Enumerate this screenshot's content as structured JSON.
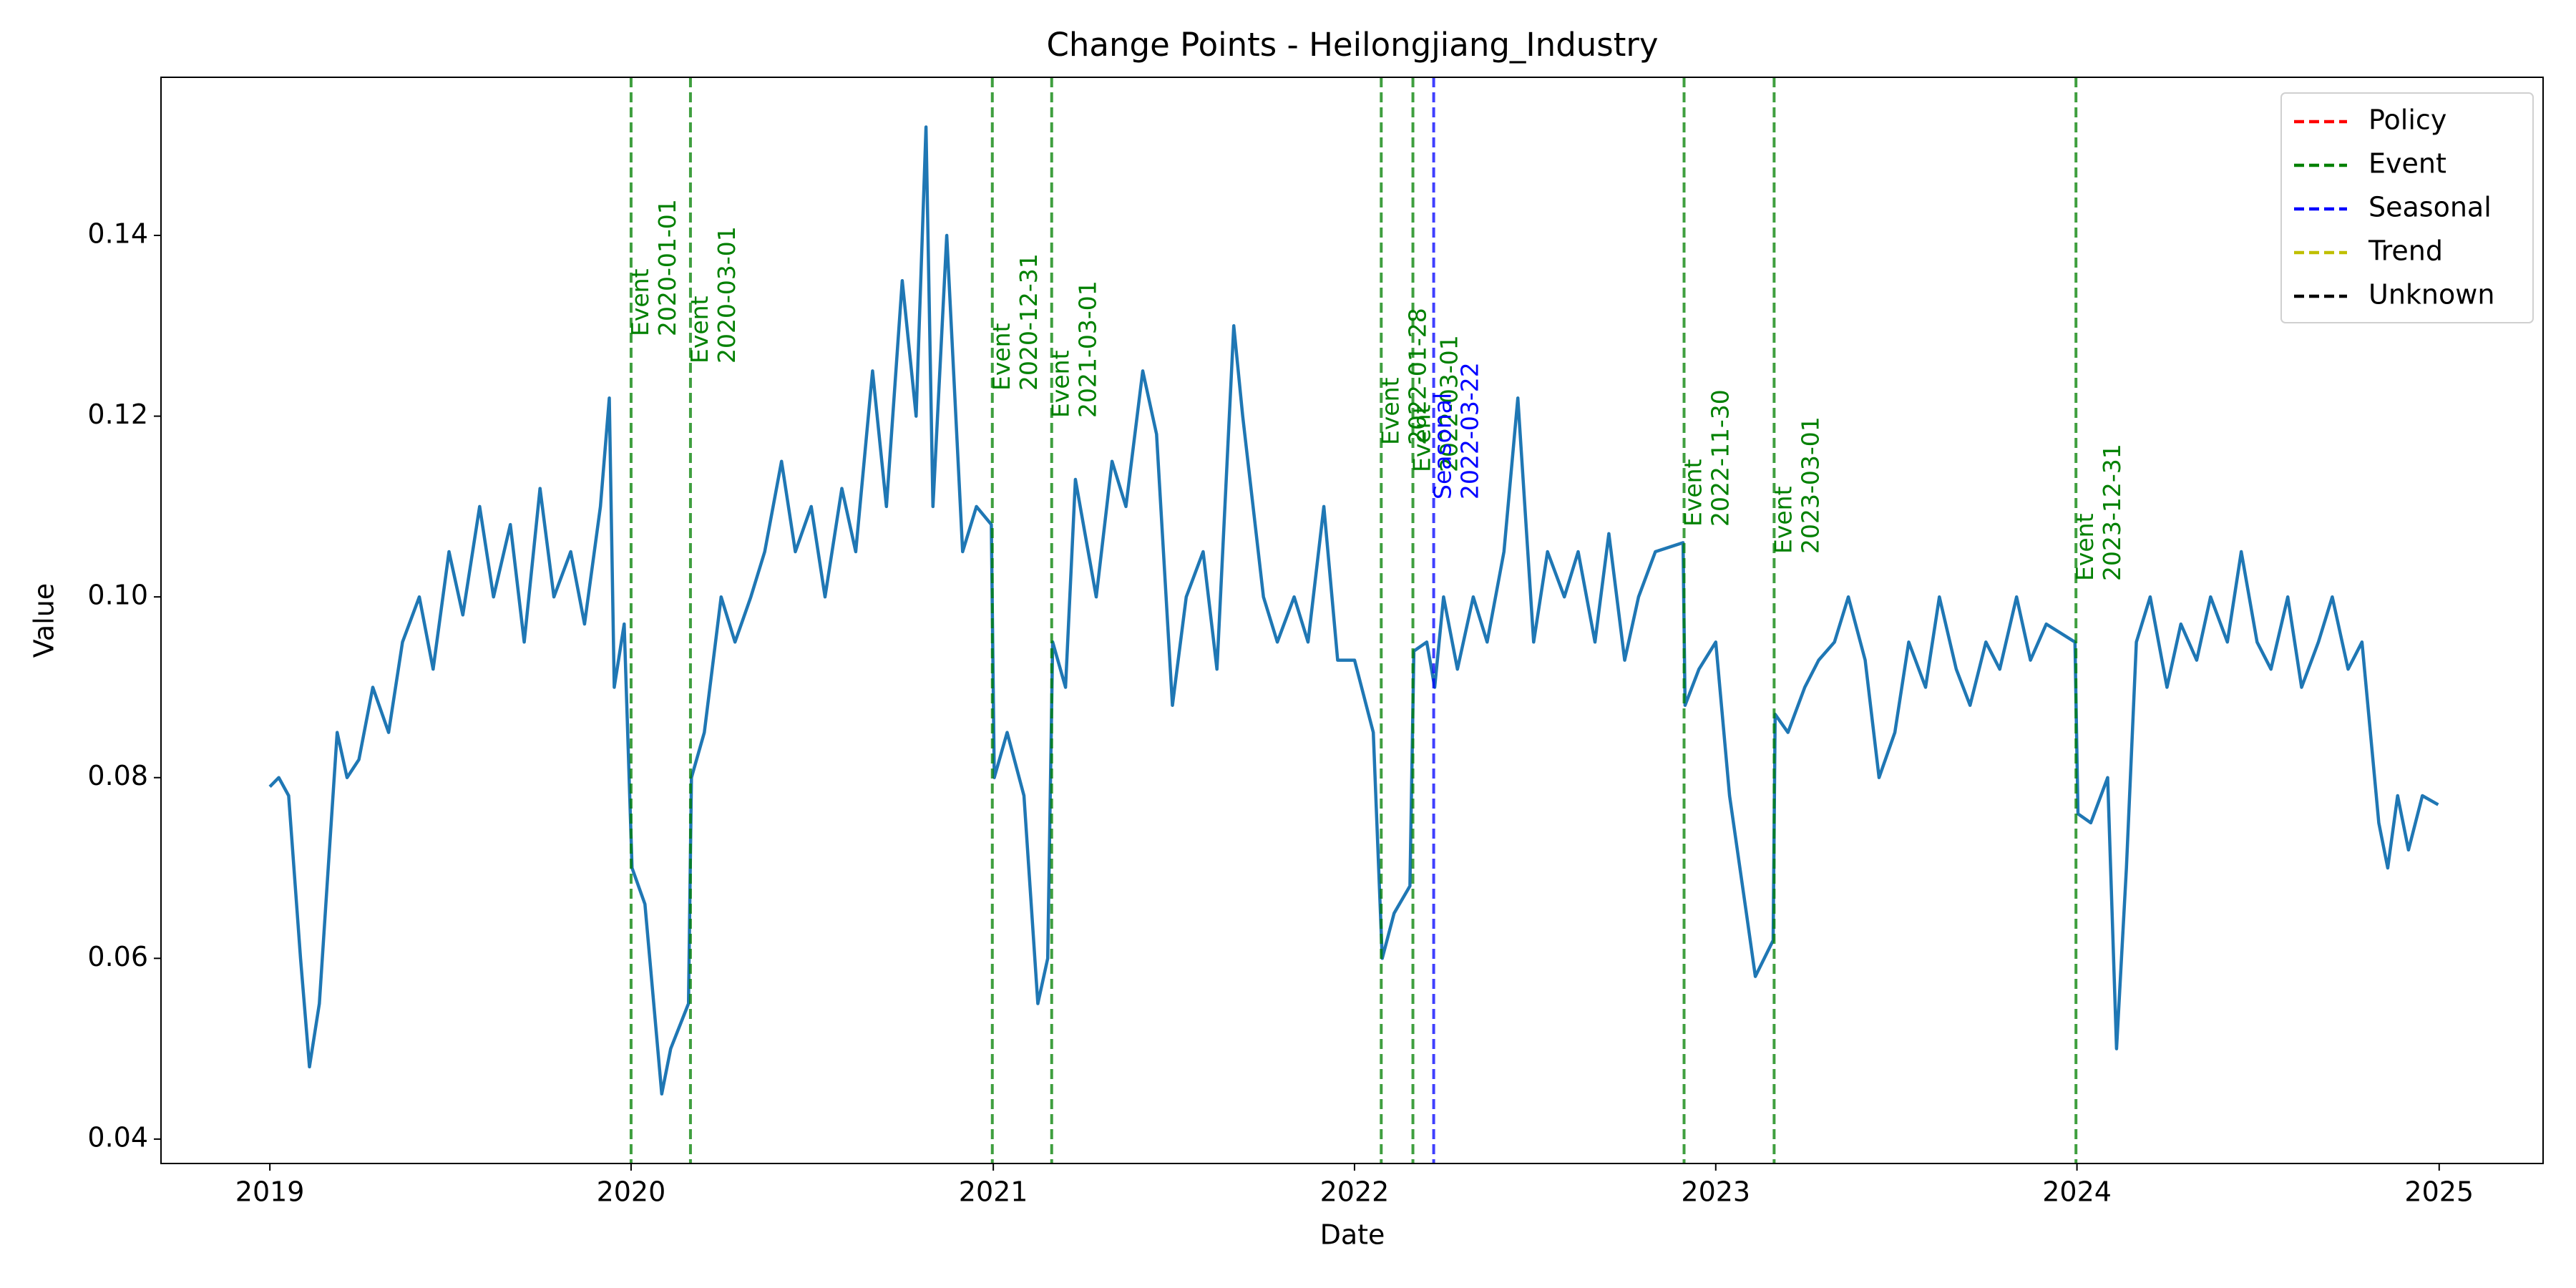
{
  "chart_data": {
    "type": "line",
    "title": "Change Points - Heilongjiang_Industry",
    "xlabel": "Date",
    "ylabel": "Value",
    "color": "#1f77b4",
    "xlim": [
      "2018-09-13",
      "2025-04-16"
    ],
    "ylim": [
      0.0373,
      0.1575
    ],
    "xticks": [
      {
        "value": "2019-01-01",
        "label": "2019"
      },
      {
        "value": "2020-01-01",
        "label": "2020"
      },
      {
        "value": "2021-01-01",
        "label": "2021"
      },
      {
        "value": "2022-01-01",
        "label": "2022"
      },
      {
        "value": "2023-01-01",
        "label": "2023"
      },
      {
        "value": "2024-01-01",
        "label": "2024"
      },
      {
        "value": "2025-01-01",
        "label": "2025"
      }
    ],
    "yticks": [
      0.04,
      0.06,
      0.08,
      {
        "value": 0.1,
        "label": "0.10"
      },
      0.12,
      0.14
    ],
    "legend_loc": "upper right",
    "legend": [
      {
        "name": "Policy",
        "color": "#ff0000"
      },
      {
        "name": "Event",
        "color": "#008000"
      },
      {
        "name": "Seasonal",
        "color": "#0000ff"
      },
      {
        "name": "Trend",
        "color": "#bfbf00"
      },
      {
        "name": "Unknown",
        "color": "#000000"
      }
    ],
    "change_points": [
      {
        "date": "2020-01-01",
        "kind": "Event"
      },
      {
        "date": "2020-03-01",
        "kind": "Event"
      },
      {
        "date": "2020-12-31",
        "kind": "Event"
      },
      {
        "date": "2021-03-01",
        "kind": "Event"
      },
      {
        "date": "2022-01-28",
        "kind": "Event"
      },
      {
        "date": "2022-03-01",
        "kind": "Event"
      },
      {
        "date": "2022-03-22",
        "kind": "Seasonal"
      },
      {
        "date": "2022-11-30",
        "kind": "Event"
      },
      {
        "date": "2023-03-01",
        "kind": "Event"
      },
      {
        "date": "2023-12-31",
        "kind": "Event"
      }
    ],
    "x": [
      "2019-01-01",
      "2019-01-10",
      "2019-01-20",
      "2019-02-01",
      "2019-02-10",
      "2019-02-20",
      "2019-03-01",
      "2019-03-10",
      "2019-03-20",
      "2019-04-01",
      "2019-04-15",
      "2019-05-01",
      "2019-05-15",
      "2019-06-01",
      "2019-06-15",
      "2019-07-01",
      "2019-07-15",
      "2019-08-01",
      "2019-08-15",
      "2019-09-01",
      "2019-09-15",
      "2019-10-01",
      "2019-10-15",
      "2019-11-01",
      "2019-11-15",
      "2019-12-01",
      "2019-12-10",
      "2019-12-15",
      "2019-12-25",
      "2020-01-02",
      "2020-01-15",
      "2020-02-01",
      "2020-02-10",
      "2020-02-28",
      "2020-03-02",
      "2020-03-15",
      "2020-04-01",
      "2020-04-15",
      "2020-05-01",
      "2020-05-15",
      "2020-06-01",
      "2020-06-15",
      "2020-07-01",
      "2020-07-15",
      "2020-08-01",
      "2020-08-15",
      "2020-09-01",
      "2020-09-15",
      "2020-10-01",
      "2020-10-15",
      "2020-10-25",
      "2020-11-01",
      "2020-11-15",
      "2020-12-01",
      "2020-12-15",
      "2020-12-30",
      "2021-01-02",
      "2021-01-15",
      "2021-02-01",
      "2021-02-15",
      "2021-02-25",
      "2021-03-02",
      "2021-03-15",
      "2021-03-25",
      "2021-04-15",
      "2021-05-01",
      "2021-05-15",
      "2021-06-01",
      "2021-06-15",
      "2021-07-01",
      "2021-07-15",
      "2021-08-01",
      "2021-08-15",
      "2021-09-01",
      "2021-09-10",
      "2021-10-01",
      "2021-10-15",
      "2021-11-01",
      "2021-11-15",
      "2021-12-01",
      "2021-12-15",
      "2022-01-01",
      "2022-01-20",
      "2022-01-29",
      "2022-02-10",
      "2022-02-26",
      "2022-03-02",
      "2022-03-15",
      "2022-03-23",
      "2022-04-01",
      "2022-04-15",
      "2022-05-01",
      "2022-05-15",
      "2022-06-01",
      "2022-06-15",
      "2022-07-01",
      "2022-07-15",
      "2022-08-01",
      "2022-08-15",
      "2022-09-01",
      "2022-09-15",
      "2022-10-01",
      "2022-10-15",
      "2022-11-01",
      "2022-11-29",
      "2022-12-01",
      "2022-12-15",
      "2023-01-01",
      "2023-01-15",
      "2023-02-01",
      "2023-02-10",
      "2023-02-28",
      "2023-03-02",
      "2023-03-15",
      "2023-04-01",
      "2023-04-15",
      "2023-05-01",
      "2023-05-15",
      "2023-06-01",
      "2023-06-15",
      "2023-07-01",
      "2023-07-15",
      "2023-08-01",
      "2023-08-15",
      "2023-09-01",
      "2023-09-15",
      "2023-10-01",
      "2023-10-15",
      "2023-11-01",
      "2023-11-15",
      "2023-12-01",
      "2023-12-30",
      "2024-01-02",
      "2024-01-15",
      "2024-02-01",
      "2024-02-10",
      "2024-02-20",
      "2024-03-01",
      "2024-03-15",
      "2024-04-01",
      "2024-04-15",
      "2024-05-01",
      "2024-05-15",
      "2024-06-01",
      "2024-06-15",
      "2024-07-01",
      "2024-07-15",
      "2024-08-01",
      "2024-08-15",
      "2024-09-01",
      "2024-09-15",
      "2024-10-01",
      "2024-10-15",
      "2024-11-01",
      "2024-11-10",
      "2024-11-20",
      "2024-12-01",
      "2024-12-15",
      "2024-12-31"
    ],
    "values": [
      0.079,
      0.08,
      0.078,
      0.06,
      0.048,
      0.055,
      0.07,
      0.085,
      0.08,
      0.082,
      0.09,
      0.085,
      0.095,
      0.1,
      0.092,
      0.105,
      0.098,
      0.11,
      0.1,
      0.108,
      0.095,
      0.112,
      0.1,
      0.105,
      0.097,
      0.11,
      0.122,
      0.09,
      0.097,
      0.07,
      0.066,
      0.045,
      0.05,
      0.055,
      0.08,
      0.085,
      0.1,
      0.095,
      0.1,
      0.105,
      0.115,
      0.105,
      0.11,
      0.1,
      0.112,
      0.105,
      0.125,
      0.11,
      0.135,
      0.12,
      0.152,
      0.11,
      0.14,
      0.105,
      0.11,
      0.108,
      0.08,
      0.085,
      0.078,
      0.055,
      0.06,
      0.095,
      0.09,
      0.113,
      0.1,
      0.115,
      0.11,
      0.125,
      0.118,
      0.088,
      0.1,
      0.105,
      0.092,
      0.13,
      0.12,
      0.1,
      0.095,
      0.1,
      0.095,
      0.11,
      0.093,
      0.093,
      0.085,
      0.06,
      0.065,
      0.068,
      0.094,
      0.095,
      0.09,
      0.1,
      0.092,
      0.1,
      0.095,
      0.105,
      0.122,
      0.095,
      0.105,
      0.1,
      0.105,
      0.095,
      0.107,
      0.093,
      0.1,
      0.105,
      0.106,
      0.088,
      0.092,
      0.095,
      0.078,
      0.065,
      0.058,
      0.062,
      0.087,
      0.085,
      0.09,
      0.093,
      0.095,
      0.1,
      0.093,
      0.08,
      0.085,
      0.095,
      0.09,
      0.1,
      0.092,
      0.088,
      0.095,
      0.092,
      0.1,
      0.093,
      0.097,
      0.095,
      0.076,
      0.075,
      0.08,
      0.05,
      0.07,
      0.095,
      0.1,
      0.09,
      0.097,
      0.093,
      0.1,
      0.095,
      0.105,
      0.095,
      0.092,
      0.1,
      0.09,
      0.095,
      0.1,
      0.092,
      0.095,
      0.075,
      0.07,
      0.078,
      0.072,
      0.078,
      0.077
    ]
  }
}
